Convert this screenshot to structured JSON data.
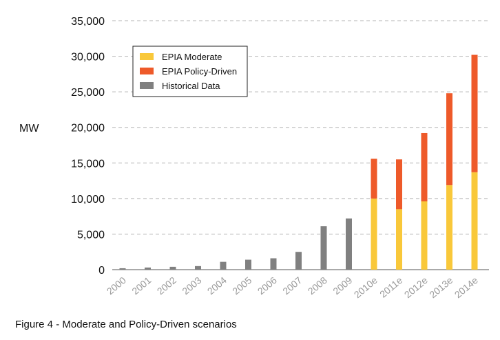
{
  "caption": "Figure 4 - Moderate and Policy-Driven scenarios",
  "chart_data": {
    "type": "bar",
    "stacked": true,
    "ylabel": "MW",
    "ylim": [
      0,
      35000
    ],
    "yticks": [
      "0",
      "5,000",
      "10,000",
      "15,000",
      "20,000",
      "25,000",
      "30,000",
      "35,000"
    ],
    "ytick_values": [
      0,
      5000,
      10000,
      15000,
      20000,
      25000,
      30000,
      35000
    ],
    "grid": true,
    "legend_position": "top-left",
    "categories": [
      "2000",
      "2001",
      "2002",
      "2003",
      "2004",
      "2005",
      "2006",
      "2007",
      "2008",
      "2009",
      "2010e",
      "2011e",
      "2012e",
      "2013e",
      "2014e"
    ],
    "series": [
      {
        "name": "EPIA Moderate",
        "color": "#f9c83a",
        "values": [
          null,
          null,
          null,
          null,
          null,
          null,
          null,
          null,
          null,
          null,
          10000,
          8500,
          9600,
          11900,
          13700
        ]
      },
      {
        "name": "EPIA Policy-Driven",
        "color": "#ee5a2a",
        "values": [
          null,
          null,
          null,
          null,
          null,
          null,
          null,
          null,
          null,
          null,
          5600,
          7000,
          9600,
          12900,
          16500
        ]
      },
      {
        "name": "Historical Data",
        "color": "#808080",
        "values": [
          200,
          300,
          400,
          500,
          1100,
          1400,
          1600,
          2500,
          6100,
          7200,
          null,
          null,
          null,
          null,
          null
        ]
      }
    ]
  }
}
